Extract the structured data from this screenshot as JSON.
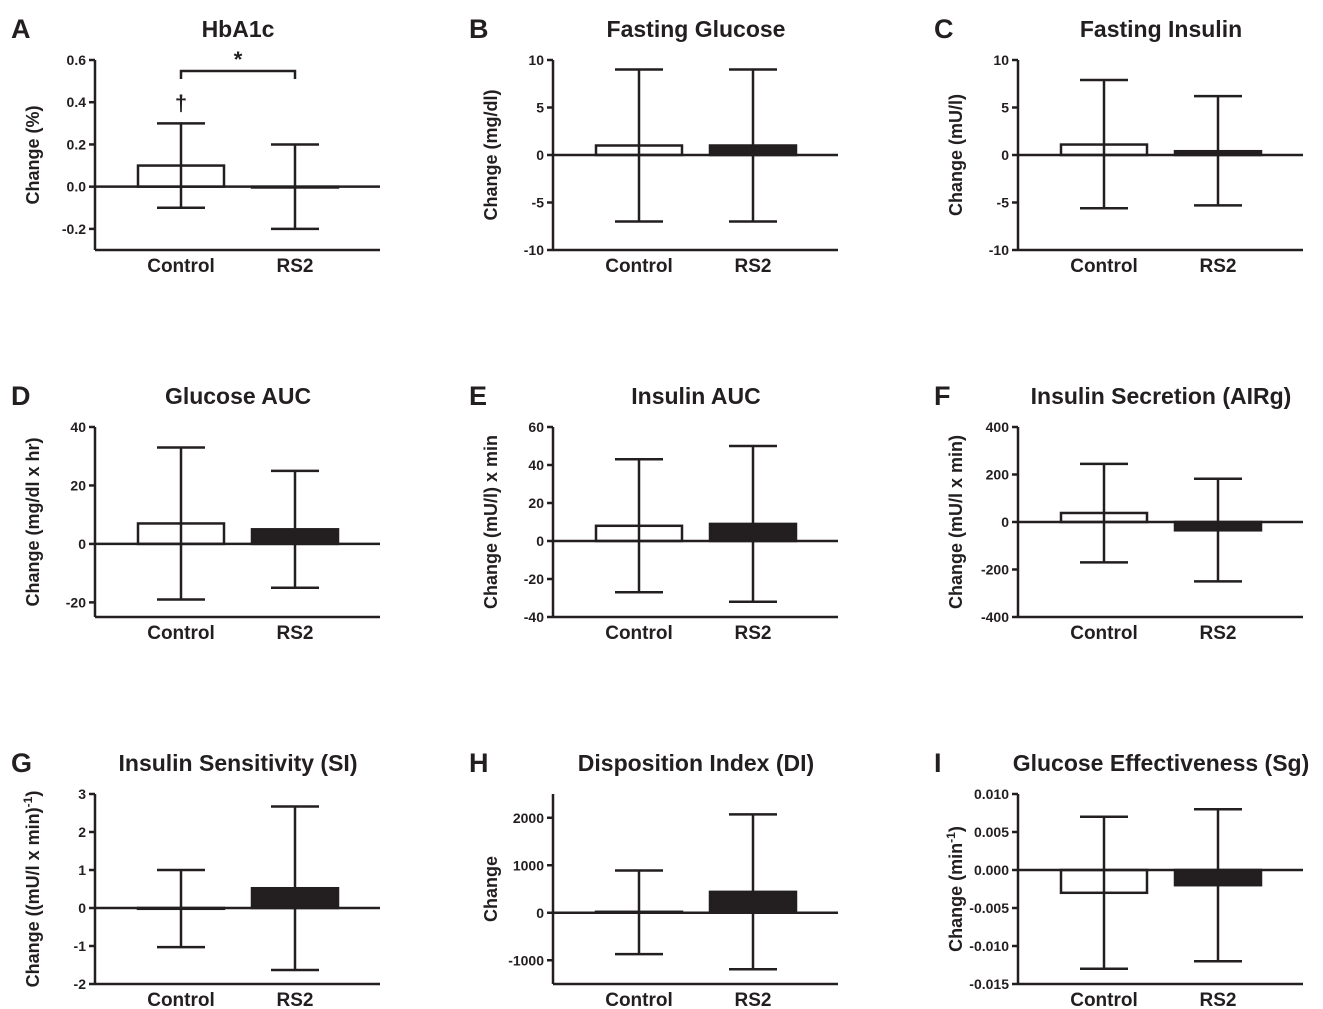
{
  "colors": {
    "ink": "#231f20",
    "rs2_fill": "#231f20",
    "control_fill": "#ffffff"
  },
  "chart_data": [
    {
      "letter": "A",
      "type": "bar",
      "title": "HbA1c",
      "ylabel": "Change (%)",
      "ylim": [
        -0.3,
        0.6
      ],
      "ticks": [
        -0.2,
        0.0,
        0.2,
        0.4,
        0.6
      ],
      "tick_labels": [
        "-0.2",
        "0.0",
        "0.2",
        "0.4",
        "0.6"
      ],
      "categories": [
        "Control",
        "RS2"
      ],
      "series": [
        {
          "values": [
            0.1,
            0.0
          ],
          "err_low": [
            -0.1,
            -0.2
          ],
          "err_high": [
            0.3,
            0.2
          ]
        }
      ],
      "annotations": {
        "dagger": "†",
        "dagger_on": "Control",
        "star": "*",
        "bracket": [
          "Control",
          "RS2"
        ]
      }
    },
    {
      "letter": "B",
      "type": "bar",
      "title": "Fasting Glucose",
      "ylabel": "Change (mg/dl)",
      "ylim": [
        -10,
        10
      ],
      "ticks": [
        -10,
        -5,
        0,
        5,
        10
      ],
      "tick_labels": [
        "-10",
        "-5",
        "0",
        "5",
        "10"
      ],
      "categories": [
        "Control",
        "RS2"
      ],
      "series": [
        {
          "values": [
            1,
            1
          ],
          "err_low": [
            -7,
            -7
          ],
          "err_high": [
            9,
            9
          ]
        }
      ]
    },
    {
      "letter": "C",
      "type": "bar",
      "title": "Fasting Insulin",
      "ylabel": "Change (mU/l)",
      "ylim": [
        -10,
        10
      ],
      "ticks": [
        -10,
        -5,
        0,
        5,
        10
      ],
      "tick_labels": [
        "-10",
        "-5",
        "0",
        "5",
        "10"
      ],
      "categories": [
        "Control",
        "RS2"
      ],
      "series": [
        {
          "values": [
            1.1,
            0.4
          ],
          "err_low": [
            -5.6,
            -5.3
          ],
          "err_high": [
            7.9,
            6.2
          ]
        }
      ]
    },
    {
      "letter": "D",
      "type": "bar",
      "title": "Glucose AUC",
      "ylabel": "Change (mg/dl x hr)",
      "ylim": [
        -25,
        40
      ],
      "ticks": [
        -20,
        0,
        20,
        40
      ],
      "tick_labels": [
        "-20",
        "0",
        "20",
        "40"
      ],
      "categories": [
        "Control",
        "RS2"
      ],
      "series": [
        {
          "values": [
            7,
            5
          ],
          "err_low": [
            -19,
            -15
          ],
          "err_high": [
            33,
            25
          ]
        }
      ]
    },
    {
      "letter": "E",
      "type": "bar",
      "title": "Insulin AUC",
      "ylabel": "Change (mU/l) x min",
      "ylim": [
        -40,
        60
      ],
      "ticks": [
        -40,
        -20,
        0,
        20,
        40,
        60
      ],
      "tick_labels": [
        "-40",
        "-20",
        "0",
        "20",
        "40",
        "60"
      ],
      "categories": [
        "Control",
        "RS2"
      ],
      "series": [
        {
          "values": [
            8,
            9
          ],
          "err_low": [
            -27,
            -32
          ],
          "err_high": [
            43,
            50
          ]
        }
      ]
    },
    {
      "letter": "F",
      "type": "bar",
      "title": "Insulin Secretion (AIRg)",
      "ylabel": "Change (mU/l x min)",
      "ylim": [
        -400,
        400
      ],
      "ticks": [
        -400,
        -200,
        0,
        200,
        400
      ],
      "tick_labels": [
        "-400",
        "-200",
        "0",
        "200",
        "400"
      ],
      "categories": [
        "Control",
        "RS2"
      ],
      "series": [
        {
          "values": [
            38,
            -35
          ],
          "err_low": [
            -170,
            -250
          ],
          "err_high": [
            245,
            182
          ]
        }
      ]
    },
    {
      "letter": "G",
      "type": "bar",
      "title": "Insulin Sensitivity (SI)",
      "ylabel": "Change ((mU/l x min)",
      "ylabel_sup": "-1",
      "ylabel_close": ")",
      "ylim": [
        -2,
        3
      ],
      "ticks": [
        -2,
        -1,
        0,
        1,
        2,
        3
      ],
      "tick_labels": [
        "-2",
        "-1",
        "0",
        "1",
        "2",
        "3"
      ],
      "categories": [
        "Control",
        "RS2"
      ],
      "series": [
        {
          "values": [
            -0.02,
            0.52
          ],
          "err_low": [
            -1.03,
            -1.63
          ],
          "err_high": [
            1.0,
            2.67
          ]
        }
      ]
    },
    {
      "letter": "H",
      "type": "bar",
      "title": "Disposition Index (DI)",
      "ylabel": "Change",
      "ylim": [
        -1500,
        2500
      ],
      "ticks": [
        -1000,
        0,
        1000,
        2000
      ],
      "tick_labels": [
        "-1000",
        "0",
        "1000",
        "2000"
      ],
      "categories": [
        "Control",
        "RS2"
      ],
      "series": [
        {
          "values": [
            20,
            440
          ],
          "err_low": [
            -870,
            -1190
          ],
          "err_high": [
            890,
            2070
          ]
        }
      ]
    },
    {
      "letter": "I",
      "type": "bar",
      "title": "Glucose Effectiveness (Sg)",
      "ylabel": "Change (min",
      "ylabel_sup": "-1",
      "ylabel_close": ")",
      "ylim": [
        -0.015,
        0.01
      ],
      "ticks": [
        -0.015,
        -0.01,
        -0.005,
        0.0,
        0.005,
        0.01
      ],
      "tick_labels": [
        "-0.015",
        "-0.010",
        "-0.005",
        "0.000",
        "0.005",
        "0.010"
      ],
      "categories": [
        "Control",
        "RS2"
      ],
      "series": [
        {
          "values": [
            -0.003,
            -0.002
          ],
          "err_low": [
            -0.013,
            -0.012
          ],
          "err_high": [
            0.007,
            0.008
          ]
        }
      ]
    }
  ]
}
